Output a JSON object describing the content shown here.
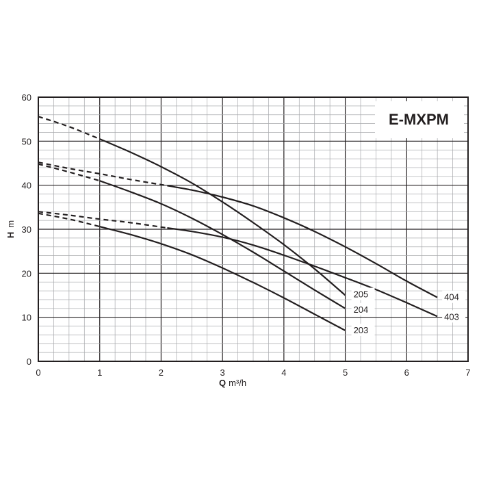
{
  "chart_data": {
    "type": "line",
    "title": "E-MXPM",
    "xlabel_main": "Q",
    "xlabel_unit": "m³/h",
    "ylabel_main": "H",
    "ylabel_unit": "m",
    "xlim": [
      0,
      7
    ],
    "ylim": [
      0,
      60
    ],
    "x_ticks": [
      "0",
      "1",
      "2",
      "3",
      "4",
      "5",
      "6",
      "7"
    ],
    "y_ticks": [
      "0",
      "10",
      "20",
      "30",
      "40",
      "50",
      "60"
    ],
    "grid": true,
    "series": [
      {
        "name": "205",
        "dashed": [
          [
            0,
            55.6
          ],
          [
            0.5,
            53.3
          ],
          [
            1,
            50.5
          ]
        ],
        "solid": [
          [
            1,
            50.5
          ],
          [
            1.5,
            47.5
          ],
          [
            2,
            44.2
          ],
          [
            2.5,
            40.5
          ],
          [
            3,
            36.2
          ],
          [
            3.5,
            31.5
          ],
          [
            4,
            26.5
          ],
          [
            4.5,
            21
          ],
          [
            5,
            15
          ]
        ]
      },
      {
        "name": "204",
        "dashed": [
          [
            0,
            44.8
          ],
          [
            0.5,
            43
          ],
          [
            1,
            41
          ]
        ],
        "solid": [
          [
            1,
            41
          ],
          [
            1.5,
            38.5
          ],
          [
            2,
            35.8
          ],
          [
            2.5,
            32.5
          ],
          [
            3,
            28.8
          ],
          [
            3.5,
            24.8
          ],
          [
            4,
            20.5
          ],
          [
            4.5,
            16.2
          ],
          [
            5,
            12
          ]
        ]
      },
      {
        "name": "203",
        "dashed": [
          [
            0,
            33.6
          ],
          [
            0.5,
            32.3
          ],
          [
            1,
            30.6
          ]
        ],
        "solid": [
          [
            1,
            30.6
          ],
          [
            1.5,
            28.8
          ],
          [
            2,
            26.7
          ],
          [
            2.5,
            24.2
          ],
          [
            3,
            21.2
          ],
          [
            3.5,
            17.9
          ],
          [
            4,
            14.4
          ],
          [
            4.5,
            10.7
          ],
          [
            5,
            7
          ]
        ]
      },
      {
        "name": "404",
        "dashed": [
          [
            0,
            45.2
          ],
          [
            0.5,
            43.8
          ],
          [
            1,
            42.6
          ],
          [
            1.5,
            41.3
          ],
          [
            2.1,
            39.9
          ]
        ],
        "solid": [
          [
            2.1,
            39.9
          ],
          [
            2.5,
            38.9
          ],
          [
            3,
            37.3
          ],
          [
            3.5,
            35.3
          ],
          [
            4,
            32.6
          ],
          [
            4.5,
            29.5
          ],
          [
            5,
            26
          ],
          [
            5.5,
            22.2
          ],
          [
            6,
            18.2
          ],
          [
            6.5,
            14.5
          ]
        ]
      },
      {
        "name": "403",
        "dashed": [
          [
            0,
            34
          ],
          [
            0.5,
            33.2
          ],
          [
            1,
            32.3
          ],
          [
            1.5,
            31.5
          ],
          [
            2.1,
            30.3
          ]
        ],
        "solid": [
          [
            2.1,
            30.3
          ],
          [
            2.5,
            29.5
          ],
          [
            3,
            28.2
          ],
          [
            3.5,
            26.4
          ],
          [
            4,
            24.1
          ],
          [
            4.5,
            21.6
          ],
          [
            5,
            19
          ],
          [
            5.5,
            16.3
          ],
          [
            6,
            13.3
          ],
          [
            6.5,
            10.2
          ]
        ]
      }
    ],
    "line_color": "#231f20"
  }
}
